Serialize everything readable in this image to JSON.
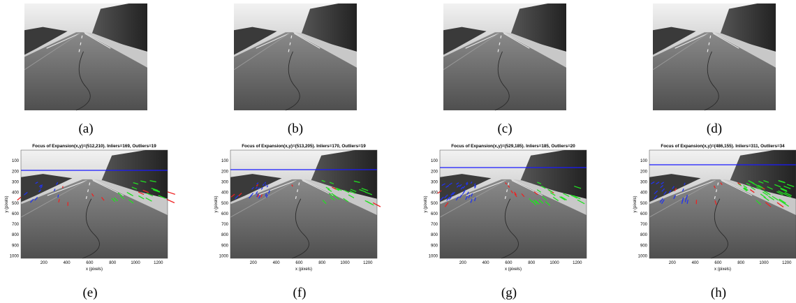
{
  "top_row": [
    {
      "label": "(a)"
    },
    {
      "label": "(b)"
    },
    {
      "label": "(c)"
    },
    {
      "label": "(d)"
    }
  ],
  "bottom_row": [
    {
      "label": "(e)",
      "title": "Focus of Expansion(x,y)=(512,210). Inliers=169, Outliers=19"
    },
    {
      "label": "(f)",
      "title": "Focus of Expansion(x,y)=(513,205). Inliers=170, Outliers=19"
    },
    {
      "label": "(g)",
      "title": "Focus of Expansion(x,y)=(529,185). Inliers=185, Outliers=20"
    },
    {
      "label": "(h)",
      "title": "Focus of Expansion(x,y)=(486,155). Inliers=311, Outliers=34"
    }
  ],
  "axes": {
    "xlabel": "x (pixels)",
    "ylabel": "y (pixels)",
    "xticks": [
      "200",
      "400",
      "600",
      "800",
      "1000",
      "1200"
    ],
    "yticks": [
      "100",
      "200",
      "300",
      "400",
      "500",
      "600",
      "700",
      "800",
      "900",
      "1000"
    ]
  }
}
